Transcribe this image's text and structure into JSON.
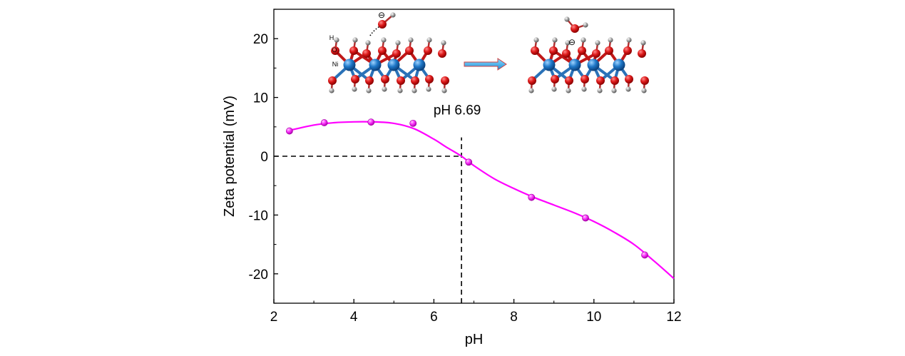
{
  "chart_data": {
    "type": "scatter",
    "xlabel": "pH",
    "ylabel": "Zeta potential (mV)",
    "xlim": [
      2,
      12
    ],
    "ylim": [
      -25,
      25
    ],
    "x_ticks": [
      "2",
      "4",
      "6",
      "8",
      "10",
      "12"
    ],
    "y_ticks": [
      "-20",
      "-10",
      "0",
      "10",
      "20"
    ],
    "grid": false,
    "legend": "none",
    "series": [
      {
        "color": "#ff00ff",
        "marker": "sphere",
        "x": [
          2.39,
          3.26,
          4.43,
          5.48,
          6.87,
          8.44,
          9.79,
          11.27
        ],
        "y": [
          4.3,
          5.7,
          5.8,
          5.6,
          -1.0,
          -7.0,
          -10.5,
          -16.8
        ],
        "fit": {
          "x": [
            2.39,
            3.0,
            3.5,
            4.0,
            4.5,
            5.0,
            5.5,
            6.0,
            6.3,
            6.69,
            7.0,
            7.5,
            8.0,
            8.5,
            9.0,
            9.5,
            10.0,
            10.5,
            11.0,
            11.5,
            12.0
          ],
          "y": [
            4.4,
            5.3,
            5.7,
            5.85,
            5.85,
            5.6,
            4.7,
            2.9,
            1.6,
            0.0,
            -1.6,
            -3.8,
            -5.5,
            -7.0,
            -8.3,
            -9.6,
            -11.1,
            -12.9,
            -15.0,
            -17.8,
            -20.8
          ]
        }
      }
    ],
    "reference_lines": [
      {
        "orientation": "vertical",
        "x": 6.69,
        "style": "dashed"
      },
      {
        "orientation": "horizontal",
        "y": 0,
        "style": "dashed"
      }
    ],
    "annotations": [
      {
        "text": "pH 6.69",
        "x": 6.69
      }
    ],
    "inset": {
      "description_labels": [
        "H",
        "O",
        "Ni"
      ],
      "charge_symbol": "⊖",
      "atom_colors": {
        "H": "#9a9a9a",
        "O": "#d0161a",
        "Ni": "#1f78c8"
      },
      "arrow_color": "#35a8e8"
    }
  }
}
